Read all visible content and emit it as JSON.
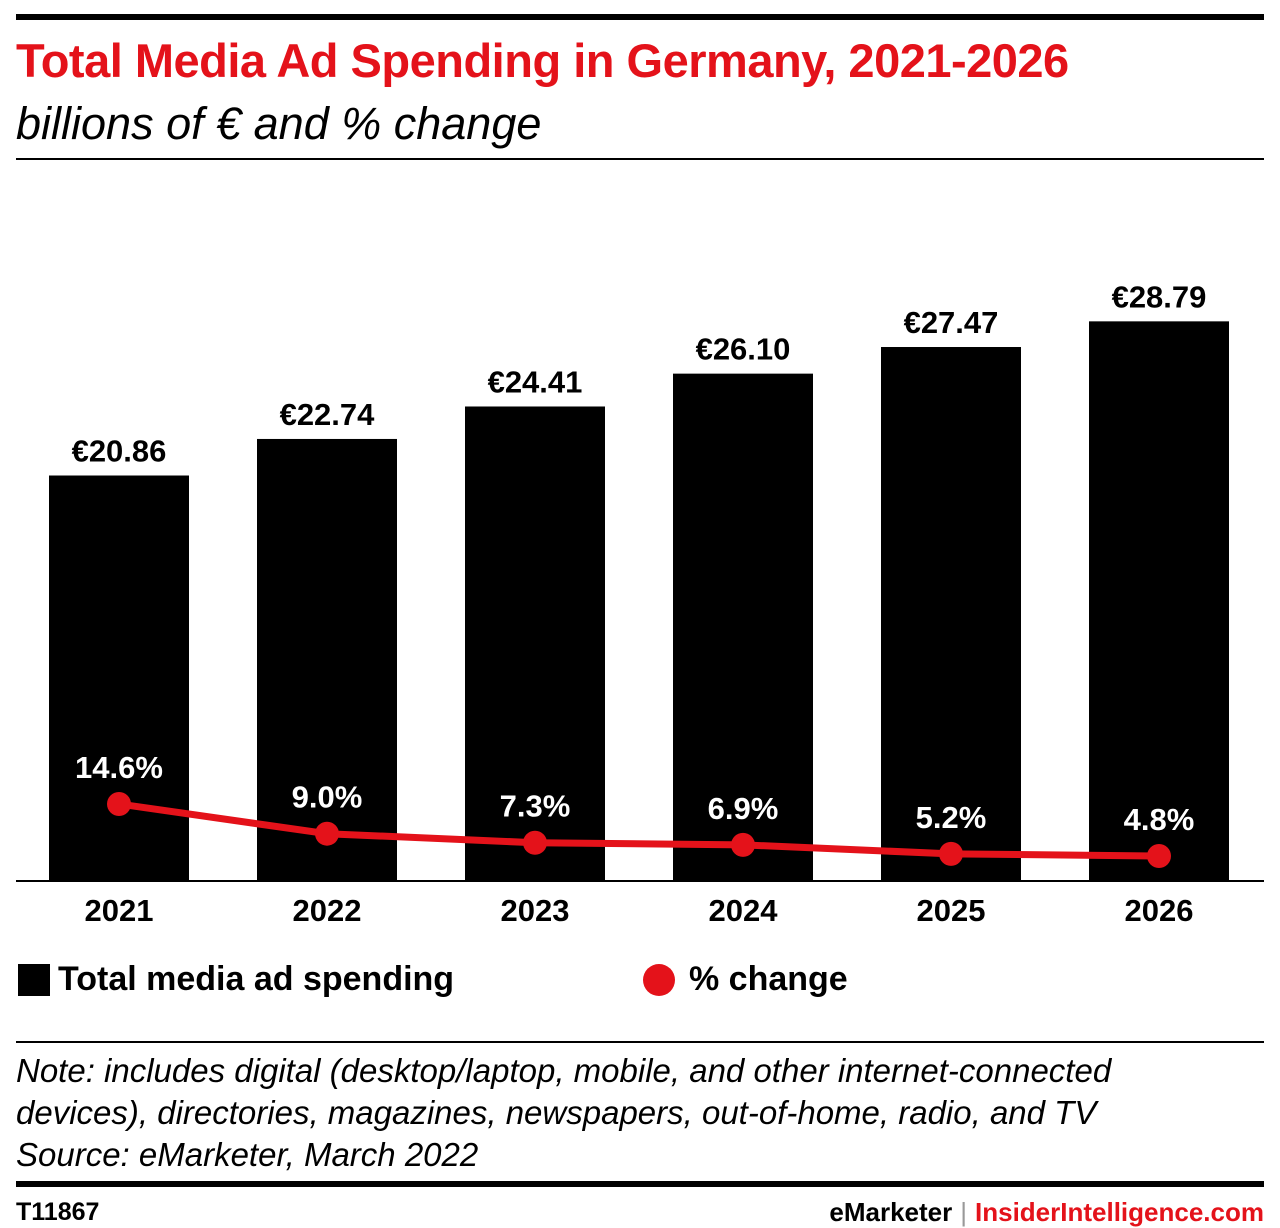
{
  "header": {
    "title": "Total Media Ad Spending in Germany, 2021-2026",
    "subtitle": "billions of € and % change"
  },
  "colors": {
    "bar": "#000000",
    "line": "#e4121a",
    "title": "#e4121a",
    "label_on_bar": "#ffffff"
  },
  "chart_data": {
    "type": "bar",
    "categories": [
      "2021",
      "2022",
      "2023",
      "2024",
      "2025",
      "2026"
    ],
    "series": [
      {
        "name": "Total media ad spending",
        "type": "bar",
        "values": [
          20.86,
          22.74,
          24.41,
          26.1,
          27.47,
          28.79
        ],
        "labels": [
          "€20.86",
          "€22.74",
          "€24.41",
          "€26.10",
          "€27.47",
          "€28.79"
        ]
      },
      {
        "name": "% change",
        "type": "line",
        "values": [
          14.6,
          9.0,
          7.3,
          6.9,
          5.2,
          4.8
        ],
        "labels": [
          "14.6%",
          "9.0%",
          "7.3%",
          "6.9%",
          "5.2%",
          "4.8%"
        ]
      }
    ],
    "grid": false,
    "legend_position": "bottom"
  },
  "legend": {
    "bar_label": "Total media ad spending",
    "line_label": "% change"
  },
  "notes": {
    "note_line1": "Note: includes digital (desktop/laptop, mobile, and other internet-connected",
    "note_line2": "devices), directories, magazines, newspapers, out-of-home, radio, and TV",
    "source": "Source: eMarketer, March 2022"
  },
  "footer": {
    "chart_id": "T11867",
    "brand_left": "eMarketer",
    "separator": "|",
    "brand_right": "InsiderIntelligence.com"
  }
}
